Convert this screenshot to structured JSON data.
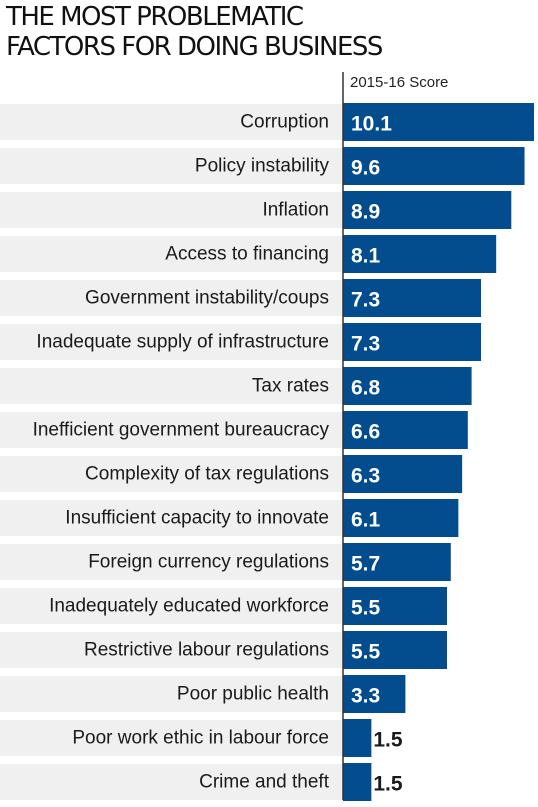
{
  "chart_data": {
    "type": "bar",
    "orientation": "horizontal",
    "title_lines": [
      "THE MOST PROBLEMATIC",
      "FACTORS FOR DOING BUSINESS"
    ],
    "series_label": "2015-16 Score",
    "categories": [
      "Corruption",
      "Policy instability",
      "Inflation",
      "Access to financing",
      "Government instability/coups",
      "Inadequate supply of infrastructure",
      "Tax rates",
      "Inefficient government bureaucracy",
      "Complexity of tax regulations",
      "Insufficient capacity to innovate",
      "Foreign currency regulations",
      "Inadequately educated workforce",
      "Restrictive labour regulations",
      "Poor public health",
      "Poor work ethic in labour force",
      "Crime and theft"
    ],
    "values": [
      10.1,
      9.6,
      8.9,
      8.1,
      7.3,
      7.3,
      6.8,
      6.6,
      6.3,
      6.1,
      5.7,
      5.5,
      5.5,
      3.3,
      1.5,
      1.5
    ],
    "value_labels": [
      "10.1",
      "9.6",
      "8.9",
      "8.1",
      "7.3",
      "7.3",
      "6.8",
      "6.6",
      "6.3",
      "6.1",
      "5.7",
      "5.5",
      "5.5",
      "3.3",
      "1.5",
      "1.5"
    ],
    "xlim": [
      0,
      10.1
    ],
    "grid": false,
    "legend": "none",
    "colors": {
      "bar": "#034d8f",
      "row_band": "#f0f0f0",
      "axis": "#333333",
      "value_inside": "#ffffff",
      "value_outside": "#1a1a1a"
    }
  }
}
